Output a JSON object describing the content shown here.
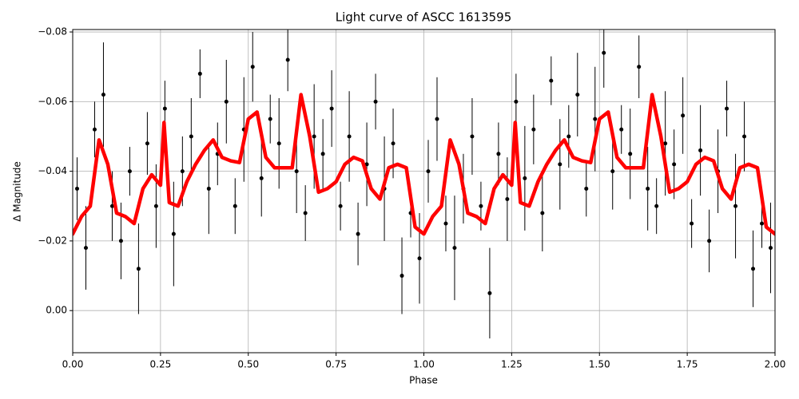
{
  "chart_data": {
    "type": "errorbar",
    "title": "Light curve of ASCC 1613595",
    "x_label": "Phase",
    "y_label": "Δ Magnitude",
    "xlim": [
      0,
      2
    ],
    "ylim": [
      -0.0807,
      0.0121
    ],
    "y_inverted": true,
    "grid": true,
    "xticks": [
      {
        "value": 0,
        "label": "0.00"
      },
      {
        "value": 0.25,
        "label": "0.25"
      },
      {
        "value": 0.5,
        "label": "0.50"
      },
      {
        "value": 0.75,
        "label": "0.75"
      },
      {
        "value": 1,
        "label": "1.00"
      },
      {
        "value": 1.25,
        "label": "1.25"
      },
      {
        "value": 1.5,
        "label": "1.50"
      },
      {
        "value": 1.75,
        "label": "1.75"
      },
      {
        "value": 2,
        "label": "2.00"
      }
    ],
    "yticks": [
      {
        "value": -0.08,
        "label": "−0.08"
      },
      {
        "value": -0.06,
        "label": "−0.06"
      },
      {
        "value": -0.04,
        "label": "−0.04"
      },
      {
        "value": -0.02,
        "label": "−0.02"
      },
      {
        "value": 0,
        "label": "0.00"
      }
    ],
    "series": [
      {
        "kind": "errorbar",
        "color": "#000000",
        "x": [
          0.0125,
          0.0375,
          0.0625,
          0.0875,
          0.1125,
          0.1375,
          0.1625,
          0.1875,
          0.2125,
          0.2375,
          0.2625,
          0.2875,
          0.3125,
          0.3375,
          0.3625,
          0.3875,
          0.4125,
          0.4375,
          0.4625,
          0.4875,
          0.5125,
          0.5375,
          0.5625,
          0.5875,
          0.6125,
          0.6375,
          0.6625,
          0.6875,
          0.7125,
          0.7375,
          0.7625,
          0.7875,
          0.8125,
          0.8375,
          0.8625,
          0.8875,
          0.9125,
          0.9375,
          0.9625,
          0.9875,
          1.0125,
          1.0375,
          1.0625,
          1.0875,
          1.1125,
          1.1375,
          1.1625,
          1.1875,
          1.2125,
          1.2375,
          1.2625,
          1.2875,
          1.3125,
          1.3375,
          1.3625,
          1.3875,
          1.4125,
          1.4375,
          1.4625,
          1.4875,
          1.5125,
          1.5375,
          1.5625,
          1.5875,
          1.6125,
          1.6375,
          1.6625,
          1.6875,
          1.7125,
          1.7375,
          1.7625,
          1.7875,
          1.8125,
          1.8375,
          1.8625,
          1.8875,
          1.9125,
          1.9375,
          1.9625,
          1.9875
        ],
        "y": [
          -0.035,
          -0.018,
          -0.052,
          -0.062,
          -0.03,
          -0.02,
          -0.04,
          -0.012,
          -0.048,
          -0.03,
          -0.058,
          -0.022,
          -0.04,
          -0.05,
          -0.068,
          -0.035,
          -0.045,
          -0.06,
          -0.03,
          -0.052,
          -0.07,
          -0.038,
          -0.055,
          -0.048,
          -0.072,
          -0.04,
          -0.028,
          -0.05,
          -0.045,
          -0.058,
          -0.03,
          -0.05,
          -0.022,
          -0.042,
          -0.06,
          -0.035,
          -0.048,
          -0.01,
          -0.028,
          -0.015,
          -0.04,
          -0.055,
          -0.025,
          -0.018,
          -0.035,
          -0.05,
          -0.03,
          -0.005,
          -0.045,
          -0.032,
          -0.06,
          -0.038,
          -0.052,
          -0.028,
          -0.066,
          -0.042,
          -0.05,
          -0.062,
          -0.035,
          -0.055,
          -0.074,
          -0.04,
          -0.052,
          -0.045,
          -0.07,
          -0.035,
          -0.03,
          -0.048,
          -0.042,
          -0.056,
          -0.025,
          -0.046,
          -0.02,
          -0.04,
          -0.058,
          -0.03,
          -0.05,
          -0.012,
          -0.025,
          -0.018
        ],
        "yerr": [
          0.009,
          0.012,
          0.008,
          0.015,
          0.01,
          0.011,
          0.007,
          0.013,
          0.009,
          0.012,
          0.008,
          0.015,
          0.01,
          0.011,
          0.007,
          0.013,
          0.009,
          0.012,
          0.008,
          0.015,
          0.01,
          0.011,
          0.007,
          0.013,
          0.009,
          0.012,
          0.008,
          0.015,
          0.01,
          0.011,
          0.007,
          0.013,
          0.009,
          0.012,
          0.008,
          0.015,
          0.01,
          0.011,
          0.007,
          0.013,
          0.009,
          0.012,
          0.008,
          0.015,
          0.01,
          0.011,
          0.007,
          0.013,
          0.009,
          0.012,
          0.008,
          0.015,
          0.01,
          0.011,
          0.007,
          0.013,
          0.009,
          0.012,
          0.008,
          0.015,
          0.01,
          0.011,
          0.007,
          0.013,
          0.009,
          0.012,
          0.008,
          0.015,
          0.01,
          0.011,
          0.007,
          0.013,
          0.009,
          0.012,
          0.008,
          0.015,
          0.01,
          0.011,
          0.007,
          0.013
        ]
      },
      {
        "kind": "line",
        "color": "#ff0000",
        "x": [
          0,
          0.025,
          0.05,
          0.075,
          0.1,
          0.125,
          0.15,
          0.175,
          0.2,
          0.225,
          0.25,
          0.26,
          0.275,
          0.3,
          0.325,
          0.35,
          0.375,
          0.4,
          0.425,
          0.45,
          0.475,
          0.5,
          0.525,
          0.55,
          0.575,
          0.6,
          0.625,
          0.65,
          0.675,
          0.7,
          0.725,
          0.75,
          0.775,
          0.8,
          0.825,
          0.85,
          0.875,
          0.9,
          0.925,
          0.95,
          0.975,
          1.0,
          1.025,
          1.05,
          1.075,
          1.1,
          1.125,
          1.15,
          1.175,
          1.2,
          1.225,
          1.25,
          1.26,
          1.275,
          1.3,
          1.325,
          1.35,
          1.375,
          1.4,
          1.425,
          1.45,
          1.475,
          1.5,
          1.525,
          1.55,
          1.575,
          1.6,
          1.625,
          1.65,
          1.675,
          1.7,
          1.725,
          1.75,
          1.775,
          1.8,
          1.825,
          1.85,
          1.875,
          1.9,
          1.925,
          1.95,
          1.975,
          2.0
        ],
        "y": [
          -0.022,
          -0.027,
          -0.03,
          -0.049,
          -0.042,
          -0.028,
          -0.027,
          -0.025,
          -0.035,
          -0.039,
          -0.036,
          -0.054,
          -0.031,
          -0.03,
          -0.037,
          -0.042,
          -0.046,
          -0.049,
          -0.044,
          -0.043,
          -0.0425,
          -0.055,
          -0.057,
          -0.044,
          -0.041,
          -0.041,
          -0.041,
          -0.062,
          -0.05,
          -0.034,
          -0.035,
          -0.037,
          -0.042,
          -0.044,
          -0.043,
          -0.035,
          -0.032,
          -0.041,
          -0.042,
          -0.041,
          -0.024,
          -0.022,
          -0.027,
          -0.03,
          -0.049,
          -0.042,
          -0.028,
          -0.027,
          -0.025,
          -0.035,
          -0.039,
          -0.036,
          -0.054,
          -0.031,
          -0.03,
          -0.037,
          -0.042,
          -0.046,
          -0.049,
          -0.044,
          -0.043,
          -0.0425,
          -0.055,
          -0.057,
          -0.044,
          -0.041,
          -0.041,
          -0.041,
          -0.062,
          -0.05,
          -0.034,
          -0.035,
          -0.037,
          -0.042,
          -0.044,
          -0.043,
          -0.035,
          -0.032,
          -0.041,
          -0.042,
          -0.041,
          -0.024,
          -0.022
        ]
      }
    ]
  }
}
